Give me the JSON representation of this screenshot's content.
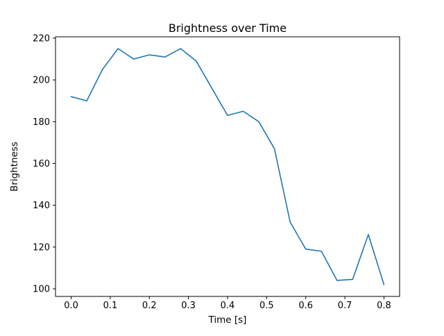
{
  "figure": {
    "background_color": "#ffffff"
  },
  "chart_data": {
    "type": "line",
    "title": "Brightness over Time",
    "xlabel": "Time [s]",
    "ylabel": "Brightness",
    "x": [
      0.0,
      0.04,
      0.08,
      0.12,
      0.16,
      0.2,
      0.24,
      0.28,
      0.32,
      0.36,
      0.4,
      0.44,
      0.48,
      0.52,
      0.56,
      0.6,
      0.64,
      0.68,
      0.72,
      0.76,
      0.8
    ],
    "y": [
      192,
      190,
      205,
      215,
      210,
      212,
      211,
      215,
      209,
      196,
      183,
      185,
      180,
      167,
      132,
      119,
      118,
      104,
      104.5,
      126,
      102
    ],
    "xlim": [
      -0.04,
      0.84
    ],
    "ylim": [
      96.35,
      220.65
    ],
    "xticks": [
      0.0,
      0.1,
      0.2,
      0.3,
      0.4,
      0.5,
      0.6,
      0.7,
      0.8
    ],
    "xtick_labels": [
      "0.0",
      "0.1",
      "0.2",
      "0.3",
      "0.4",
      "0.5",
      "0.6",
      "0.7",
      "0.8"
    ],
    "yticks": [
      100,
      120,
      140,
      160,
      180,
      200,
      220
    ],
    "ytick_labels": [
      "100",
      "120",
      "140",
      "160",
      "180",
      "200",
      "220"
    ],
    "line_color": "#1f77b4",
    "axis_color": "#000000",
    "grid": false,
    "legend": "none"
  }
}
